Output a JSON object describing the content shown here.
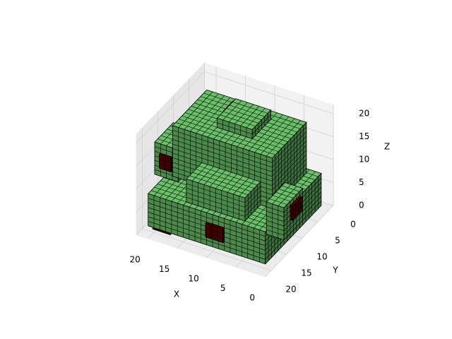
{
  "chart_data": {
    "type": "voxels",
    "xlabel": "X",
    "ylabel": "Y",
    "zlabel": "Z",
    "xlim": [
      0,
      22
    ],
    "ylim": [
      0,
      22
    ],
    "zlim": [
      0,
      22
    ],
    "xticks": [
      0,
      5,
      10,
      15,
      20
    ],
    "yticks": [
      0,
      5,
      10,
      15,
      20
    ],
    "zticks": [
      0,
      5,
      10,
      15,
      20
    ],
    "grid": true,
    "edgecolor": "#000000",
    "voxel_groups": [
      {
        "color": "#6abf69",
        "blocks": [
          [
            1,
            2,
            1,
            21,
            20,
            8
          ],
          [
            3,
            3,
            8,
            20,
            14,
            19
          ],
          [
            5,
            14,
            8,
            15,
            19,
            13
          ],
          [
            8,
            5,
            19,
            14,
            11,
            21
          ],
          [
            18,
            10,
            9,
            22,
            16,
            16
          ],
          [
            1,
            8,
            2,
            4,
            14,
            9
          ]
        ]
      },
      {
        "color": "#5a0000",
        "blocks": [
          [
            12,
            4,
            19,
            15,
            7,
            19.4
          ],
          [
            17,
            20,
            1,
            20,
            20.4,
            4
          ],
          [
            8,
            20,
            3,
            11,
            20.4,
            6
          ],
          [
            19,
            16,
            11,
            21,
            16.4,
            14
          ],
          [
            0.6,
            9,
            5,
            1,
            12,
            8
          ]
        ]
      }
    ]
  }
}
